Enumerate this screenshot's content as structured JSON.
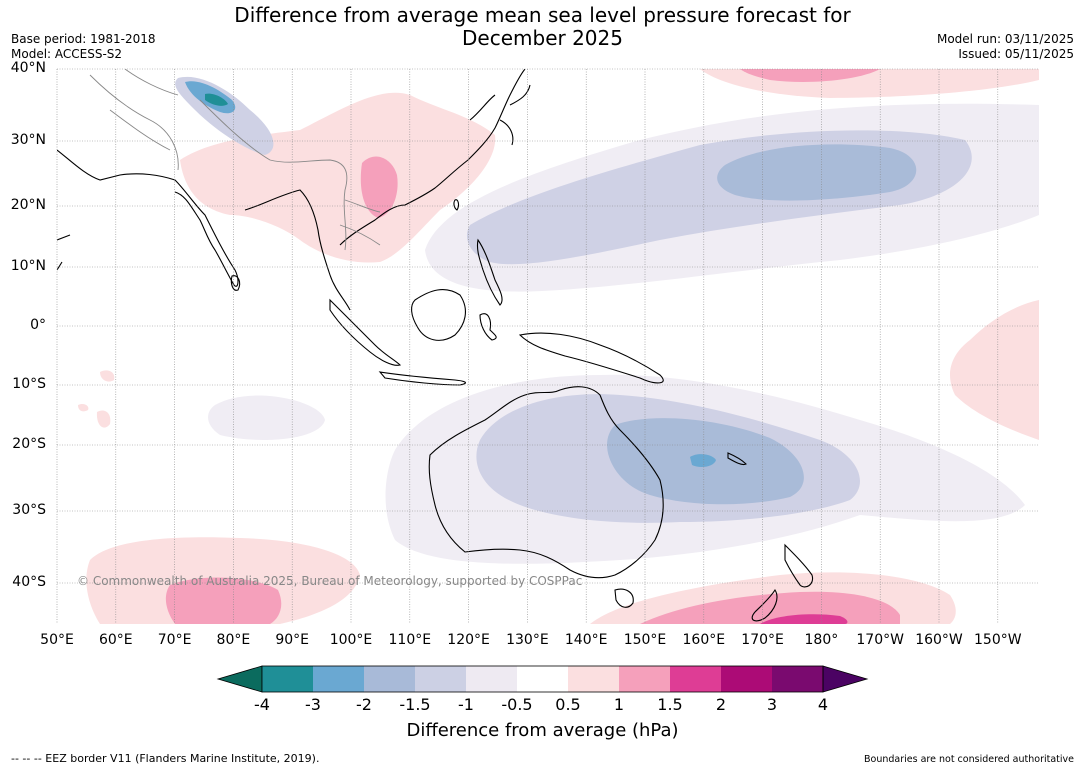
{
  "title": "Difference from average mean sea level pressure forecast for December 2025",
  "title_line1": "Difference from average mean sea level pressure forecast for",
  "title_line2": "December 2025",
  "meta_left": {
    "base_period": "Base period: 1981-2018",
    "model": "Model: ACCESS-S2"
  },
  "meta_right": {
    "model_run": "Model run: 03/11/2025",
    "issued": "Issued: 05/11/2025"
  },
  "copyright": "© Commonwealth of Australia 2025, Bureau of Meteorology, supported by COSPPac",
  "lat_labels": [
    "40°N",
    "30°N",
    "20°N",
    "10°N",
    "0°",
    "10°S",
    "20°S",
    "30°S",
    "40°S"
  ],
  "lon_labels": [
    "50°E",
    "60°E",
    "70°E",
    "80°E",
    "90°E",
    "100°E",
    "110°E",
    "120°E",
    "130°E",
    "140°E",
    "150°E",
    "160°E",
    "170°E",
    "180°",
    "170°W",
    "160°W",
    "150°W"
  ],
  "colorbar": {
    "title": "Difference from average (hPa)",
    "ticks": [
      "-4",
      "-3",
      "-2",
      "-1.5",
      "-1",
      "-0.5",
      "0.5",
      "1",
      "1.5",
      "2",
      "3",
      "4"
    ],
    "colors": {
      "below_min": "#0b6b5e",
      "bins": [
        "#1f8f97",
        "#6aa8d2",
        "#a8bad8",
        "#ccd0e4",
        "#eeeaf2",
        "#ffffff",
        "#fbdfe0",
        "#f5a0bb",
        "#de3d95",
        "#ac0b76",
        "#7a0a6f"
      ],
      "above_max": "#4b0363"
    }
  },
  "footer_left": "--  --  -- EEZ border V11 (Flanders Marine Institute, 2019).",
  "footer_right": "Boundaries are not considered authoritative",
  "colors": {
    "land_outline": "#000000",
    "country_border": "#888888",
    "grid": "#888888"
  }
}
